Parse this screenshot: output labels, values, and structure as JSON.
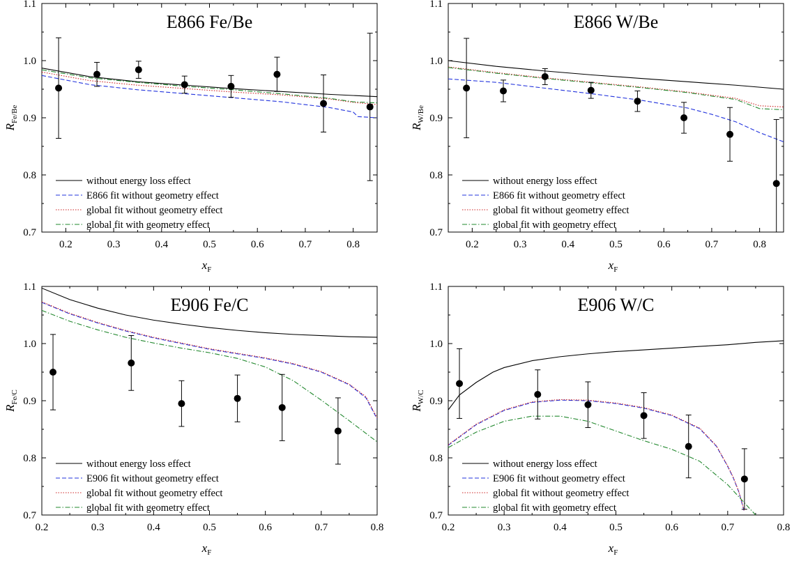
{
  "chart_data": [
    {
      "type": "scatter",
      "title": "E866 Fe/Be",
      "xlabel_main": "x",
      "xlabel_sub": "F",
      "ylabel_main": "R",
      "ylabel_sub": "Fe/Be",
      "xlim": [
        0.15,
        0.85
      ],
      "ylim": [
        0.7,
        1.1
      ],
      "xticks": [
        0.2,
        0.3,
        0.4,
        0.5,
        0.6,
        0.7,
        0.8
      ],
      "xtick_labels": [
        "0.2",
        "0.3",
        "0.4",
        "0.5",
        "0.6",
        "0.7",
        "0.8"
      ],
      "yticks": [
        0.7,
        0.8,
        0.9,
        1.0,
        1.1
      ],
      "ytick_labels": [
        "0.7",
        "0.8",
        "0.9",
        "1.0",
        "1.1"
      ],
      "legend_position": "bottom-left",
      "data_points": {
        "x": [
          0.185,
          0.265,
          0.352,
          0.448,
          0.545,
          0.641,
          0.738,
          0.835
        ],
        "y": [
          0.952,
          0.976,
          0.984,
          0.958,
          0.955,
          0.976,
          0.925,
          0.919
        ],
        "yerr": [
          0.088,
          0.021,
          0.015,
          0.015,
          0.019,
          0.03,
          0.05,
          0.129
        ]
      },
      "series": [
        {
          "name": "without energy loss effect",
          "style": "solid",
          "color": "#000000",
          "x": [
            0.15,
            0.25,
            0.35,
            0.45,
            0.55,
            0.65,
            0.75,
            0.85
          ],
          "y": [
            0.987,
            0.972,
            0.963,
            0.957,
            0.951,
            0.946,
            0.941,
            0.937
          ]
        },
        {
          "name": "E866 fit without geometry effect",
          "style": "dashed",
          "color": "#2233dd",
          "x": [
            0.15,
            0.25,
            0.35,
            0.45,
            0.55,
            0.65,
            0.75,
            0.8,
            0.81,
            0.85
          ],
          "y": [
            0.974,
            0.958,
            0.949,
            0.942,
            0.935,
            0.928,
            0.918,
            0.91,
            0.902,
            0.9
          ]
        },
        {
          "name": "global fit without geometry effect",
          "style": "dotted",
          "color": "#cc2222",
          "x": [
            0.15,
            0.25,
            0.35,
            0.45,
            0.55,
            0.65,
            0.75,
            0.8,
            0.85
          ],
          "y": [
            0.98,
            0.965,
            0.957,
            0.951,
            0.945,
            0.94,
            0.933,
            0.927,
            0.923
          ]
        },
        {
          "name": "global fit with geometry effect",
          "style": "dashdot",
          "color": "#22882e",
          "x": [
            0.15,
            0.25,
            0.35,
            0.45,
            0.55,
            0.65,
            0.75,
            0.8,
            0.85
          ],
          "y": [
            0.984,
            0.97,
            0.962,
            0.955,
            0.949,
            0.942,
            0.934,
            0.928,
            0.926
          ]
        }
      ]
    },
    {
      "type": "scatter",
      "title": "E866 W/Be",
      "xlabel_main": "x",
      "xlabel_sub": "F",
      "ylabel_main": "R",
      "ylabel_sub": "W/Be",
      "xlim": [
        0.15,
        0.85
      ],
      "ylim": [
        0.7,
        1.1
      ],
      "xticks": [
        0.2,
        0.3,
        0.4,
        0.5,
        0.6,
        0.7,
        0.8
      ],
      "xtick_labels": [
        "0.2",
        "0.3",
        "0.4",
        "0.5",
        "0.6",
        "0.7",
        "0.8"
      ],
      "yticks": [
        0.7,
        0.8,
        0.9,
        1.0,
        1.1
      ],
      "ytick_labels": [
        "0.7",
        "0.8",
        "0.9",
        "1.0",
        "1.1"
      ],
      "legend_position": "bottom-left",
      "data_points": {
        "x": [
          0.188,
          0.265,
          0.352,
          0.448,
          0.545,
          0.642,
          0.738,
          0.835
        ],
        "y": [
          0.952,
          0.947,
          0.972,
          0.948,
          0.929,
          0.9,
          0.871,
          0.785
        ],
        "yerr": [
          0.087,
          0.019,
          0.014,
          0.014,
          0.018,
          0.027,
          0.047,
          0.112
        ]
      },
      "series": [
        {
          "name": "without energy loss effect",
          "style": "solid",
          "color": "#000000",
          "x": [
            0.15,
            0.25,
            0.35,
            0.45,
            0.55,
            0.65,
            0.75,
            0.85
          ],
          "y": [
            1.0,
            0.99,
            0.982,
            0.975,
            0.969,
            0.963,
            0.957,
            0.95
          ]
        },
        {
          "name": "E866 fit without geometry effect",
          "style": "dashed",
          "color": "#2233dd",
          "x": [
            0.15,
            0.25,
            0.35,
            0.45,
            0.55,
            0.65,
            0.7,
            0.75,
            0.8,
            0.85
          ],
          "y": [
            0.968,
            0.962,
            0.952,
            0.942,
            0.931,
            0.917,
            0.906,
            0.893,
            0.874,
            0.858
          ]
        },
        {
          "name": "global fit without geometry effect",
          "style": "dotted",
          "color": "#cc2222",
          "x": [
            0.15,
            0.25,
            0.35,
            0.45,
            0.55,
            0.65,
            0.75,
            0.8,
            0.85
          ],
          "y": [
            0.989,
            0.979,
            0.97,
            0.962,
            0.954,
            0.945,
            0.934,
            0.921,
            0.919
          ]
        },
        {
          "name": "global fit with geometry effect",
          "style": "dashdot",
          "color": "#22882e",
          "x": [
            0.15,
            0.25,
            0.35,
            0.45,
            0.55,
            0.65,
            0.75,
            0.8,
            0.85
          ],
          "y": [
            0.988,
            0.978,
            0.969,
            0.961,
            0.953,
            0.944,
            0.932,
            0.916,
            0.914
          ]
        }
      ]
    },
    {
      "type": "scatter",
      "title": "E906 Fe/C",
      "xlabel_main": "x",
      "xlabel_sub": "F",
      "ylabel_main": "R",
      "ylabel_sub": "Fe/C",
      "xlim": [
        0.2,
        0.8
      ],
      "ylim": [
        0.7,
        1.1
      ],
      "xticks": [
        0.2,
        0.3,
        0.4,
        0.5,
        0.6,
        0.7,
        0.8
      ],
      "xtick_labels": [
        "0.2",
        "0.3",
        "0.4",
        "0.5",
        "0.6",
        "0.7",
        "0.8"
      ],
      "yticks": [
        0.7,
        0.8,
        0.9,
        1.0,
        1.1
      ],
      "ytick_labels": [
        "0.7",
        "0.8",
        "0.9",
        "1.0",
        "1.1"
      ],
      "legend_position": "bottom-left",
      "data_points": {
        "x": [
          0.22,
          0.36,
          0.45,
          0.55,
          0.63,
          0.73
        ],
        "y": [
          0.95,
          0.966,
          0.895,
          0.904,
          0.888,
          0.847
        ],
        "yerr": [
          0.066,
          0.048,
          0.04,
          0.041,
          0.058,
          0.058
        ]
      },
      "series": [
        {
          "name": "without energy loss effect",
          "style": "solid",
          "color": "#000000",
          "x": [
            0.2,
            0.25,
            0.3,
            0.35,
            0.4,
            0.45,
            0.5,
            0.55,
            0.6,
            0.65,
            0.7,
            0.75,
            0.8
          ],
          "y": [
            1.097,
            1.077,
            1.062,
            1.05,
            1.041,
            1.034,
            1.028,
            1.023,
            1.019,
            1.016,
            1.014,
            1.012,
            1.011
          ]
        },
        {
          "name": "E906 fit without geometry effect",
          "style": "dashed",
          "color": "#2233dd",
          "x": [
            0.2,
            0.25,
            0.3,
            0.35,
            0.4,
            0.45,
            0.5,
            0.55,
            0.6,
            0.65,
            0.7,
            0.75,
            0.78,
            0.8
          ],
          "y": [
            1.072,
            1.052,
            1.036,
            1.022,
            1.01,
            1.0,
            0.99,
            0.982,
            0.974,
            0.964,
            0.95,
            0.928,
            0.905,
            0.868
          ]
        },
        {
          "name": "global fit without geometry effect",
          "style": "dotted",
          "color": "#cc2222",
          "x": [
            0.2,
            0.25,
            0.3,
            0.35,
            0.4,
            0.45,
            0.5,
            0.55,
            0.6,
            0.65,
            0.7,
            0.75,
            0.78,
            0.8
          ],
          "y": [
            1.073,
            1.053,
            1.037,
            1.023,
            1.011,
            1.001,
            0.991,
            0.983,
            0.975,
            0.965,
            0.951,
            0.929,
            0.907,
            0.87
          ]
        },
        {
          "name": "global fit with geometry effect",
          "style": "dashdot",
          "color": "#22882e",
          "x": [
            0.2,
            0.25,
            0.3,
            0.35,
            0.4,
            0.45,
            0.5,
            0.55,
            0.6,
            0.65,
            0.7,
            0.75,
            0.8
          ],
          "y": [
            1.058,
            1.039,
            1.024,
            1.011,
            1.001,
            0.992,
            0.984,
            0.974,
            0.959,
            0.935,
            0.901,
            0.865,
            0.828
          ]
        }
      ]
    },
    {
      "type": "scatter",
      "title": "E906 W/C",
      "xlabel_main": "x",
      "xlabel_sub": "F",
      "ylabel_main": "R",
      "ylabel_sub": "W/C",
      "xlim": [
        0.2,
        0.8
      ],
      "ylim": [
        0.7,
        1.1
      ],
      "xticks": [
        0.2,
        0.3,
        0.4,
        0.5,
        0.6,
        0.7,
        0.8
      ],
      "xtick_labels": [
        "0.2",
        "0.3",
        "0.4",
        "0.5",
        "0.6",
        "0.7",
        "0.8"
      ],
      "yticks": [
        0.7,
        0.8,
        0.9,
        1.0,
        1.1
      ],
      "ytick_labels": [
        "0.7",
        "0.8",
        "0.9",
        "1.0",
        "1.1"
      ],
      "legend_position": "bottom-left",
      "data_points": {
        "x": [
          0.22,
          0.36,
          0.45,
          0.55,
          0.63,
          0.73
        ],
        "y": [
          0.93,
          0.911,
          0.893,
          0.874,
          0.82,
          0.763
        ],
        "yerr": [
          0.061,
          0.043,
          0.04,
          0.04,
          0.055,
          0.053
        ]
      },
      "series": [
        {
          "name": "without energy loss effect",
          "style": "solid",
          "color": "#000000",
          "x": [
            0.2,
            0.22,
            0.25,
            0.28,
            0.3,
            0.35,
            0.4,
            0.45,
            0.5,
            0.55,
            0.6,
            0.65,
            0.7,
            0.75,
            0.8
          ],
          "y": [
            0.884,
            0.91,
            0.932,
            0.95,
            0.958,
            0.97,
            0.977,
            0.982,
            0.986,
            0.989,
            0.992,
            0.995,
            0.998,
            1.002,
            1.005
          ]
        },
        {
          "name": "E906 fit without geometry effect",
          "style": "dashed",
          "color": "#2233dd",
          "x": [
            0.2,
            0.25,
            0.3,
            0.35,
            0.4,
            0.45,
            0.5,
            0.55,
            0.6,
            0.65,
            0.68,
            0.7,
            0.71,
            0.72,
            0.73
          ],
          "y": [
            0.822,
            0.858,
            0.883,
            0.897,
            0.901,
            0.9,
            0.895,
            0.887,
            0.874,
            0.851,
            0.82,
            0.785,
            0.765,
            0.74,
            0.705
          ]
        },
        {
          "name": "global fit without geometry effect",
          "style": "dotted",
          "color": "#cc2222",
          "x": [
            0.2,
            0.25,
            0.3,
            0.35,
            0.4,
            0.45,
            0.5,
            0.55,
            0.6,
            0.65,
            0.68,
            0.7,
            0.71,
            0.72,
            0.73
          ],
          "y": [
            0.823,
            0.859,
            0.884,
            0.898,
            0.902,
            0.901,
            0.896,
            0.888,
            0.875,
            0.852,
            0.821,
            0.786,
            0.766,
            0.741,
            0.706
          ]
        },
        {
          "name": "global fit with geometry effect",
          "style": "dashdot",
          "color": "#22882e",
          "x": [
            0.2,
            0.25,
            0.3,
            0.35,
            0.4,
            0.45,
            0.5,
            0.55,
            0.6,
            0.65,
            0.7,
            0.75
          ],
          "y": [
            0.818,
            0.845,
            0.864,
            0.873,
            0.873,
            0.864,
            0.847,
            0.83,
            0.815,
            0.794,
            0.753,
            0.7
          ]
        }
      ]
    }
  ]
}
